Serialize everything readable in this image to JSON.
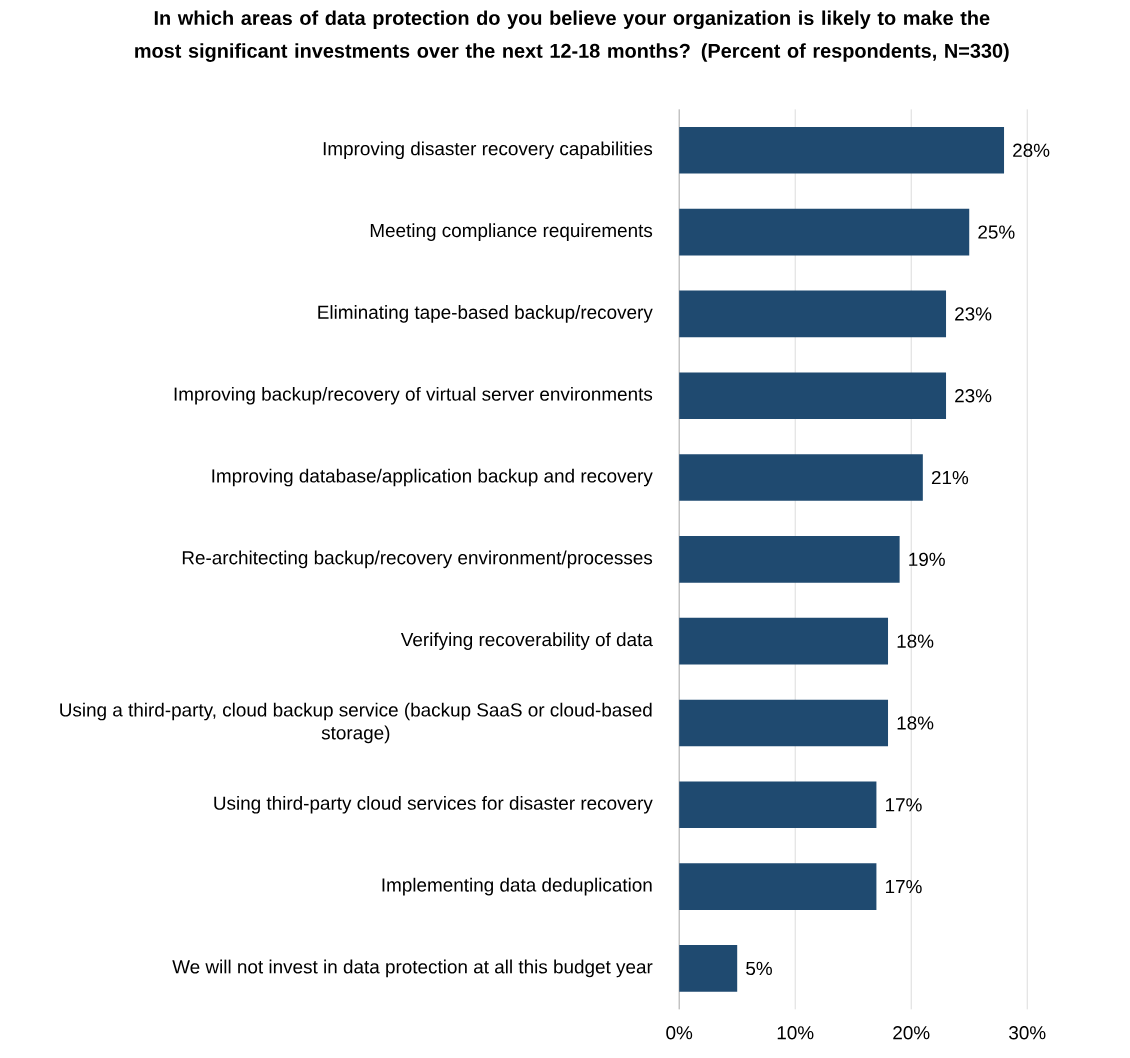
{
  "chart_data": {
    "type": "bar",
    "orientation": "horizontal",
    "title": "In which areas of data protection do you believe your organization is likely to make the most significant investments over the next 12-18 months?  (Percent of respondents, N=330)",
    "categories": [
      "Improving disaster recovery capabilities",
      "Meeting compliance requirements",
      "Eliminating tape-based backup/recovery",
      "Improving backup/recovery of virtual server environments",
      "Improving database/application backup and recovery",
      "Re-architecting backup/recovery environment/processes",
      "Verifying recoverability of data",
      "Using a third-party, cloud backup service (backup SaaS or cloud-based storage)",
      "Using third-party cloud services for disaster recovery",
      "Implementing data deduplication",
      "We will not invest in data protection at all this budget year"
    ],
    "values": [
      28,
      25,
      23,
      23,
      21,
      19,
      18,
      18,
      17,
      17,
      5
    ],
    "value_labels": [
      "28%",
      "25%",
      "23%",
      "23%",
      "21%",
      "19%",
      "18%",
      "18%",
      "17%",
      "17%",
      "5%"
    ],
    "color": "#1f4a70",
    "xlim": [
      0,
      30
    ],
    "xticks": [
      {
        "value": 0,
        "label": "0%"
      },
      {
        "value": 10,
        "label": "10%"
      },
      {
        "value": 20,
        "label": "20%"
      },
      {
        "value": 30,
        "label": "30%"
      }
    ],
    "grid": "x"
  }
}
